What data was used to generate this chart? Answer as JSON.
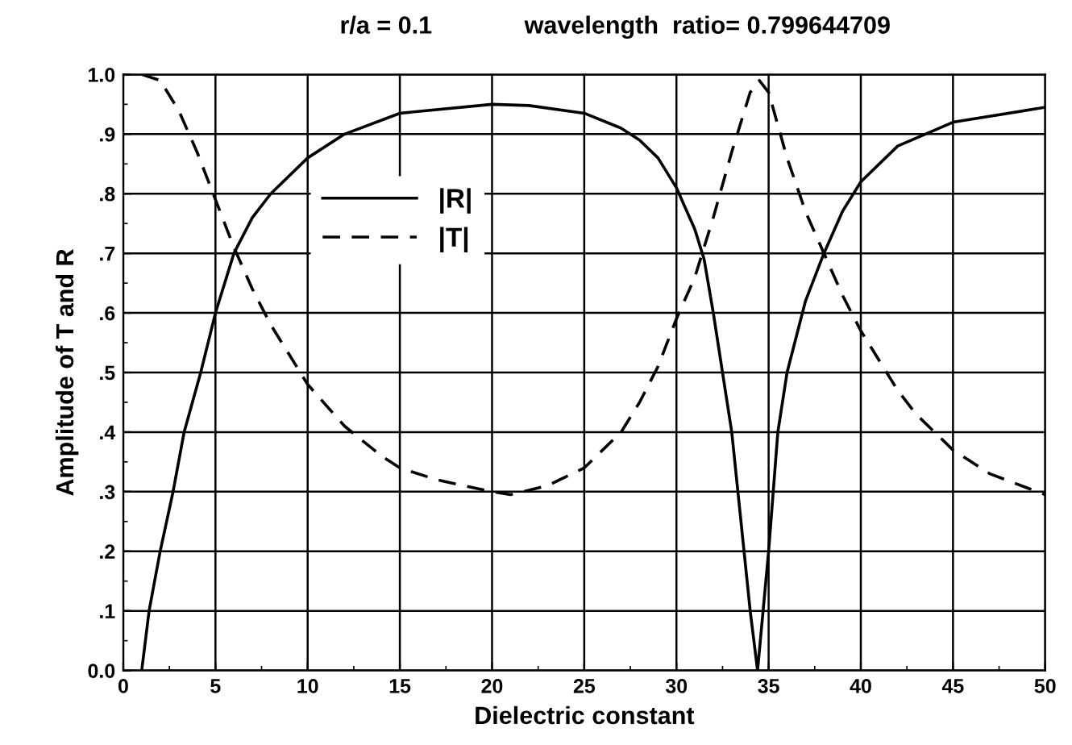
{
  "chart_data": {
    "type": "line",
    "title": "r/a = 0.1",
    "subtitle": "wavelength  ratio= 0.799644709",
    "xlabel": "Dielectric constant",
    "ylabel": "Amplitude of T and R",
    "xlim": [
      0,
      50
    ],
    "xticks": [
      0,
      5,
      10,
      15,
      20,
      25,
      30,
      35,
      40,
      45,
      50
    ],
    "ylim": [
      0,
      1
    ],
    "yticks": [
      {
        "value": 0,
        "label": "0.0"
      },
      {
        "value": 0.1,
        "label": ".1"
      },
      {
        "value": 0.2,
        "label": ".2"
      },
      {
        "value": 0.3,
        "label": ".3"
      },
      {
        "value": 0.4,
        "label": ".4"
      },
      {
        "value": 0.5,
        "label": ".5"
      },
      {
        "value": 0.6,
        "label": ".6"
      },
      {
        "value": 0.7,
        "label": ".7"
      },
      {
        "value": 0.8,
        "label": ".8"
      },
      {
        "value": 0.9,
        "label": ".9"
      },
      {
        "value": 1,
        "label": "1.0"
      }
    ],
    "grid": true,
    "legend": "top left",
    "marker": "none",
    "series": [
      {
        "name": "|R|",
        "color": "#000000",
        "line_style": "solid",
        "x": [
          1,
          1.4,
          2,
          2.7,
          3.3,
          4.2,
          5,
          5.5,
          6,
          7,
          8,
          10,
          12,
          15,
          20,
          22,
          25,
          27,
          28,
          29,
          30,
          31,
          31.5,
          32,
          33,
          33.5,
          34,
          34.4,
          35,
          35.5,
          36,
          37,
          38,
          39,
          40,
          42,
          45,
          50
        ],
        "values": [
          0,
          0.1,
          0.2,
          0.3,
          0.4,
          0.5,
          0.6,
          0.65,
          0.7,
          0.76,
          0.8,
          0.86,
          0.9,
          0.935,
          0.95,
          0.948,
          0.935,
          0.91,
          0.89,
          0.86,
          0.81,
          0.74,
          0.69,
          0.6,
          0.4,
          0.25,
          0.1,
          0,
          0.2,
          0.4,
          0.5,
          0.62,
          0.7,
          0.77,
          0.82,
          0.88,
          0.92,
          0.945
        ]
      },
      {
        "name": "|T|",
        "color": "#000000",
        "line_style": "dashed",
        "x": [
          1,
          2,
          3,
          4,
          5,
          6,
          7,
          8,
          9,
          10,
          12,
          14,
          15,
          17,
          20,
          21,
          23,
          25,
          27,
          28,
          29,
          30,
          31,
          31.5,
          32,
          33,
          34,
          34.5,
          35,
          36,
          37,
          38,
          39,
          40,
          42,
          43,
          45,
          47,
          50
        ],
        "values": [
          1,
          0.99,
          0.94,
          0.87,
          0.79,
          0.71,
          0.64,
          0.58,
          0.53,
          0.48,
          0.41,
          0.36,
          0.34,
          0.32,
          0.3,
          0.295,
          0.31,
          0.34,
          0.4,
          0.45,
          0.51,
          0.59,
          0.66,
          0.71,
          0.76,
          0.87,
          0.97,
          0.99,
          0.97,
          0.86,
          0.77,
          0.7,
          0.63,
          0.57,
          0.47,
          0.43,
          0.37,
          0.33,
          0.295
        ]
      }
    ]
  }
}
